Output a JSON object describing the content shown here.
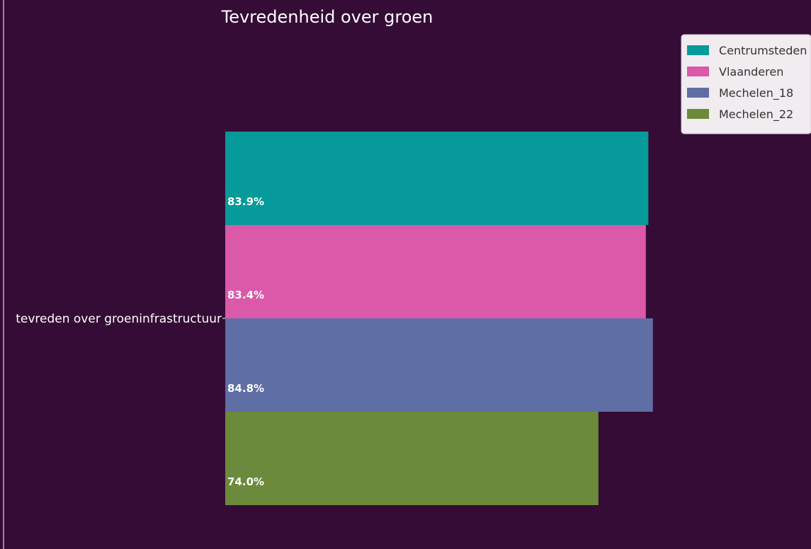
{
  "chart_data": {
    "type": "bar",
    "orientation": "horizontal",
    "title": "Tevredenheid over groen",
    "categories": [
      "tevreden over groeninfrastructuur"
    ],
    "series": [
      {
        "name": "Centrumsteden",
        "values": [
          83.9
        ],
        "labels": [
          "83.9%"
        ],
        "color": "#069a9a"
      },
      {
        "name": "Vlaanderen",
        "values": [
          83.4
        ],
        "labels": [
          "83.4%"
        ],
        "color": "#db59a9"
      },
      {
        "name": "Mechelen_18",
        "values": [
          84.8
        ],
        "labels": [
          "84.8%"
        ],
        "color": "#5f6ea5"
      },
      {
        "name": "Mechelen_22",
        "values": [
          74.0
        ],
        "labels": [
          "74.0%"
        ],
        "color": "#6b8a3b"
      }
    ],
    "xlabel": "",
    "ylabel": "",
    "xlim": [
      0,
      100
    ],
    "grid": false,
    "legend_position": "top-right",
    "colors": {
      "background": "#350c36",
      "legend_background": "#f1ecef",
      "text": "#ffffff"
    }
  }
}
